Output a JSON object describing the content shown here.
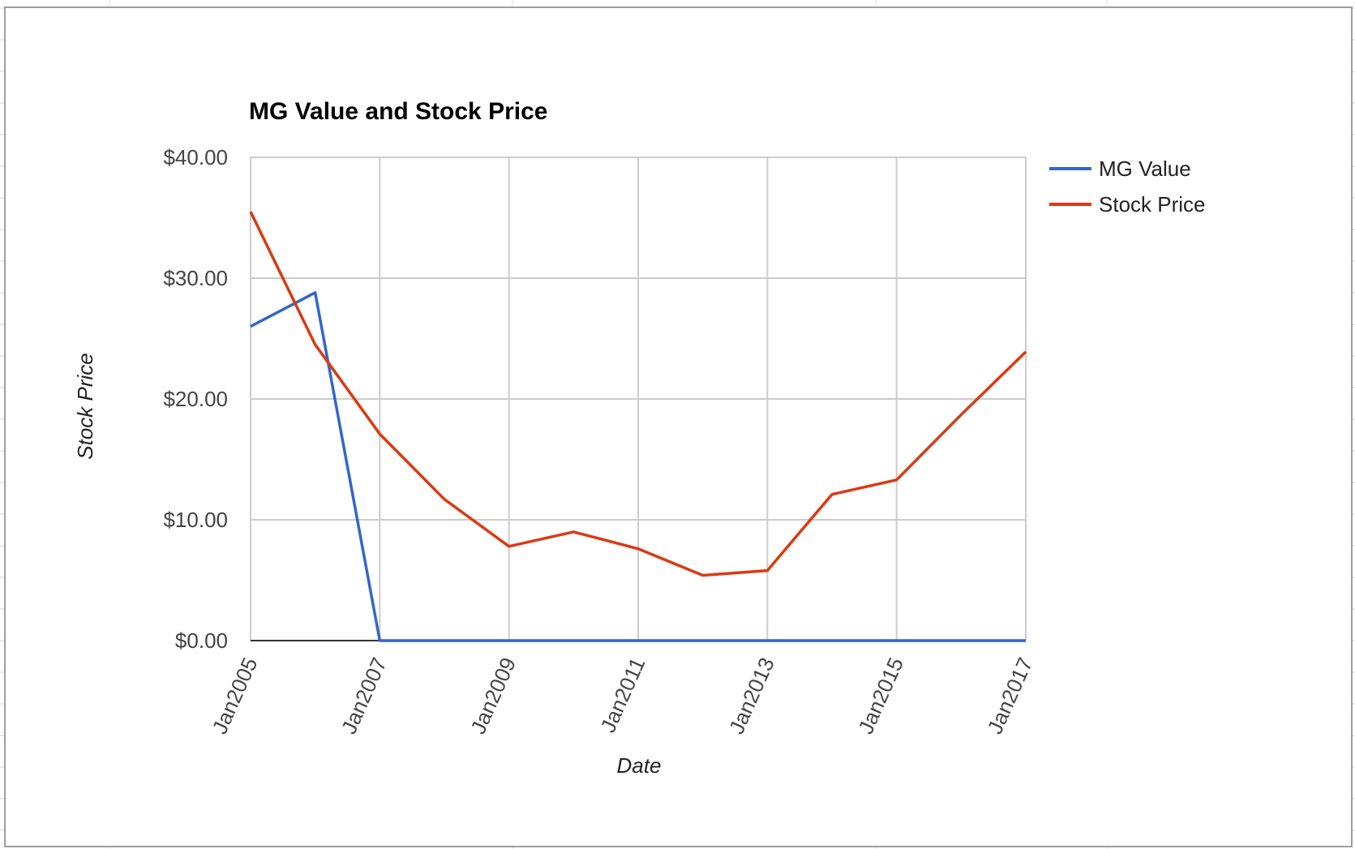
{
  "chart_data": {
    "type": "line",
    "title": "MG Value and Stock Price",
    "xlabel": "Date",
    "ylabel": "Stock Price",
    "x": [
      2005,
      2006,
      2007,
      2008,
      2009,
      2010,
      2011,
      2012,
      2013,
      2014,
      2015,
      2016,
      2017
    ],
    "x_tick_labels": [
      {
        "x": 2005,
        "label": "Jan2005"
      },
      {
        "x": 2007,
        "label": "Jan2007"
      },
      {
        "x": 2009,
        "label": "Jan2009"
      },
      {
        "x": 2011,
        "label": "Jan2011"
      },
      {
        "x": 2013,
        "label": "Jan2013"
      },
      {
        "x": 2015,
        "label": "Jan2015"
      },
      {
        "x": 2017,
        "label": "Jan2017"
      }
    ],
    "xlim": [
      2005,
      2017
    ],
    "ylim": [
      0,
      40
    ],
    "y_ticks": [
      {
        "value": 0,
        "label": "$0.00"
      },
      {
        "value": 10,
        "label": "$10.00"
      },
      {
        "value": 20,
        "label": "$20.00"
      },
      {
        "value": 30,
        "label": "$30.00"
      },
      {
        "value": 40,
        "label": "$40.00"
      }
    ],
    "grid": true,
    "legend_position": "right",
    "series": [
      {
        "name": "MG Value",
        "color": "#3366cc",
        "values": [
          26.0,
          28.8,
          0,
          0,
          0,
          0,
          0,
          0,
          0,
          0,
          0,
          0,
          0
        ]
      },
      {
        "name": "Stock Price",
        "color": "#dc3912",
        "values": [
          35.5,
          24.5,
          17.1,
          11.7,
          7.8,
          9.0,
          7.6,
          5.4,
          5.8,
          12.1,
          13.3,
          18.7,
          23.9
        ]
      }
    ]
  }
}
